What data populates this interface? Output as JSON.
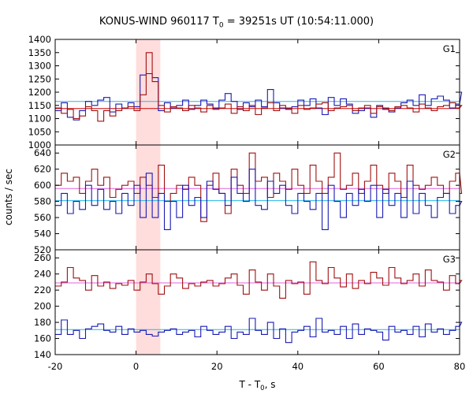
{
  "title": {
    "pre": "KONUS-WIND 960117 T",
    "sub": "0",
    "post": " = 39251s UT (10:54:11.000)"
  },
  "colors": {
    "background": "#ffffff",
    "axis": "#000000",
    "series_red": "#a01010",
    "series_blue": "#1a1ab4",
    "fit_red": "#e060e0",
    "fit_blue": "#22b8e8",
    "fit_red_g1": "#d00000",
    "highlight": "#ffdddd"
  },
  "chart_data": {
    "type": "line",
    "title": "KONUS-WIND 960117 T0 = 39251s UT (10:54:11.000)",
    "xlabel": "T - T0, s",
    "ylabel": "counts / sec",
    "xlim": [
      -20,
      80
    ],
    "xticks": [
      -20,
      0,
      20,
      40,
      60,
      80
    ],
    "highlight_interval": [
      0,
      6
    ],
    "panels": [
      {
        "name": "G1",
        "ylim": [
          1000,
          1400
        ],
        "yticks": [
          1000,
          1050,
          1100,
          1150,
          1200,
          1250,
          1300,
          1350,
          1400
        ],
        "series": [
          {
            "color": "blue",
            "style": "step",
            "x_start": -20,
            "dx": 1.5,
            "values": [
              1130,
              1160,
              1105,
              1095,
              1130,
              1165,
              1150,
              1170,
              1180,
              1125,
              1155,
              1140,
              1160,
              1145,
              1265,
              1270,
              1255,
              1130,
              1160,
              1140,
              1150,
              1170,
              1135,
              1150,
              1170,
              1155,
              1140,
              1170,
              1195,
              1165,
              1135,
              1160,
              1145,
              1170,
              1145,
              1210,
              1160,
              1140,
              1135,
              1145,
              1170,
              1150,
              1175,
              1140,
              1115,
              1180,
              1150,
              1175,
              1155,
              1120,
              1130,
              1140,
              1105,
              1150,
              1135,
              1125,
              1140,
              1160,
              1170,
              1150,
              1190,
              1150,
              1175,
              1185,
              1170,
              1140,
              1155,
              1200
            ]
          },
          {
            "color": "red",
            "style": "step",
            "x_start": -20,
            "dx": 1.5,
            "values": [
              1140,
              1120,
              1135,
              1100,
              1110,
              1145,
              1130,
              1090,
              1130,
              1110,
              1130,
              1140,
              1145,
              1130,
              1190,
              1350,
              1240,
              1150,
              1125,
              1145,
              1140,
              1130,
              1150,
              1140,
              1125,
              1150,
              1135,
              1140,
              1155,
              1120,
              1145,
              1130,
              1150,
              1115,
              1140,
              1160,
              1130,
              1150,
              1140,
              1120,
              1150,
              1135,
              1140,
              1155,
              1160,
              1130,
              1140,
              1145,
              1150,
              1130,
              1140,
              1150,
              1120,
              1145,
              1140,
              1130,
              1145,
              1150,
              1140,
              1125,
              1155,
              1140,
              1130,
              1145,
              1150,
              1160,
              1140,
              1150
            ]
          }
        ],
        "fits": [
          {
            "color": "blue",
            "value": 1165
          },
          {
            "color": "red",
            "value": 1138
          }
        ]
      },
      {
        "name": "G2",
        "ylim": [
          520,
          650
        ],
        "yticks": [
          520,
          540,
          560,
          580,
          600,
          620,
          640
        ],
        "series": [
          {
            "color": "red",
            "style": "step",
            "x_start": -20,
            "dx": 1.5,
            "values": [
              600,
              615,
              605,
              610,
              590,
              605,
              620,
              600,
              610,
              585,
              595,
              600,
              605,
              590,
              610,
              600,
              585,
              625,
              580,
              590,
              600,
              595,
              610,
              600,
              555,
              600,
              615,
              590,
              565,
              620,
              600,
              590,
              640,
              605,
              610,
              585,
              615,
              605,
              595,
              620,
              600,
              590,
              625,
              605,
              590,
              610,
              640,
              595,
              600,
              615,
              590,
              605,
              625,
              600,
              590,
              615,
              605,
              585,
              625,
              600,
              595,
              600,
              610,
              600,
              590,
              605,
              615,
              590
            ]
          },
          {
            "color": "blue",
            "style": "step",
            "x_start": -20,
            "dx": 1.5,
            "values": [
              575,
              590,
              565,
              580,
              570,
              600,
              575,
              595,
              570,
              580,
              565,
              590,
              575,
              600,
              560,
              615,
              560,
              590,
              545,
              580,
              560,
              600,
              575,
              585,
              560,
              605,
              595,
              590,
              575,
              610,
              590,
              580,
              620,
              575,
              570,
              605,
              590,
              600,
              575,
              565,
              590,
              580,
              570,
              590,
              545,
              600,
              580,
              560,
              590,
              575,
              595,
              580,
              600,
              560,
              595,
              575,
              590,
              560,
              605,
              565,
              590,
              575,
              560,
              585,
              590,
              565,
              575,
              580
            ]
          }
        ],
        "fits": [
          {
            "color": "red",
            "value": 596
          },
          {
            "color": "blue",
            "value": 581
          }
        ]
      },
      {
        "name": "G3",
        "ylim": [
          140,
          270
        ],
        "yticks": [
          140,
          160,
          180,
          200,
          220,
          240,
          260
        ],
        "series": [
          {
            "color": "red",
            "style": "step",
            "x_start": -20,
            "dx": 1.5,
            "values": [
              225,
              230,
              248,
              235,
              232,
              220,
              238,
              225,
              230,
              222,
              228,
              226,
              232,
              220,
              230,
              240,
              228,
              215,
              225,
              240,
              235,
              222,
              228,
              225,
              230,
              232,
              225,
              228,
              235,
              240,
              226,
              215,
              245,
              230,
              220,
              240,
              225,
              210,
              232,
              228,
              230,
              215,
              255,
              232,
              228,
              248,
              235,
              224,
              240,
              222,
              232,
              228,
              242,
              235,
              226,
              248,
              235,
              228,
              232,
              240,
              225,
              245,
              232,
              230,
              220,
              238,
              228,
              232
            ]
          },
          {
            "color": "blue",
            "style": "step",
            "x_start": -20,
            "dx": 1.5,
            "values": [
              165,
              183,
              165,
              170,
              160,
              172,
              175,
              178,
              170,
              168,
              175,
              165,
              172,
              168,
              170,
              165,
              163,
              168,
              170,
              172,
              165,
              168,
              170,
              162,
              175,
              170,
              165,
              168,
              175,
              160,
              168,
              165,
              185,
              170,
              165,
              180,
              160,
              172,
              155,
              168,
              170,
              175,
              162,
              185,
              168,
              170,
              165,
              175,
              160,
              178,
              165,
              172,
              170,
              168,
              158,
              175,
              168,
              170,
              165,
              175,
              162,
              178,
              168,
              172,
              165,
              170,
              175,
              180
            ]
          }
        ],
        "fits": [
          {
            "color": "red",
            "value": 229
          },
          {
            "color": "blue",
            "value": 171
          }
        ]
      }
    ]
  }
}
